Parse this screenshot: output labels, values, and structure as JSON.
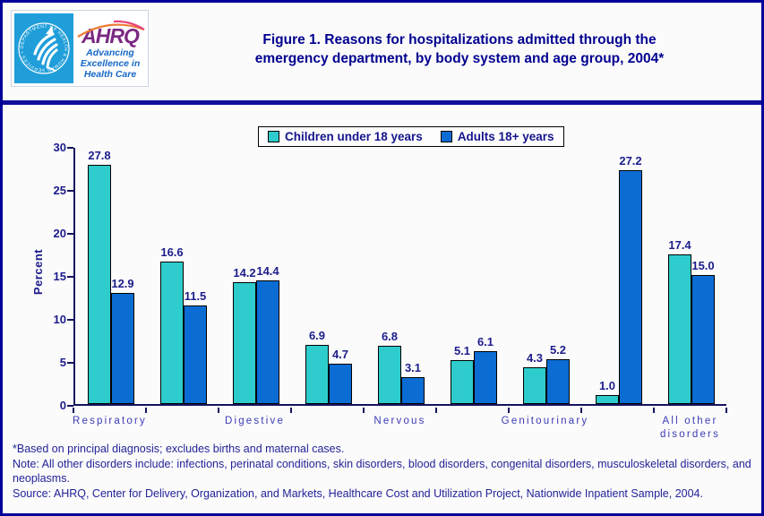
{
  "page": {
    "border_color": "#000099",
    "background": "#fbfbfb"
  },
  "header": {
    "logo": {
      "seal_text": "DEPARTMENT OF HEALTH & HUMAN SERVICES • USA",
      "acronym": "AHRQ",
      "tagline_lines": [
        "Advancing",
        "Excellence in",
        "Health Care"
      ],
      "seal_bg": "#1f9ed9",
      "acronym_color": "#7b2982",
      "tagline_color": "#1668c8",
      "arc_color": "#ee7a36"
    },
    "title_line1": "Figure 1. Reasons for hospitalizations admitted through the",
    "title_line2": "emergency department, by body system and age group, 2004*",
    "title_color": "#000090"
  },
  "chart_data": {
    "type": "bar",
    "title": "Figure 1. Reasons for hospitalizations admitted through the emergency department, by body system and age group, 2004*",
    "xlabel": "",
    "ylabel": "Percent",
    "ylim": [
      0,
      30
    ],
    "yticks": [
      0,
      5,
      10,
      15,
      20,
      25,
      30
    ],
    "grid": false,
    "legend_position": "top-center",
    "data_labels": true,
    "categories": [
      "Respiratory",
      "",
      "Digestive",
      "",
      "Nervous",
      "",
      "Genitourinary",
      "",
      "All other\ndisorders"
    ],
    "series": [
      {
        "name": "Children under 18 years",
        "color": "#2ecccc",
        "values": [
          27.8,
          16.6,
          14.2,
          6.9,
          6.8,
          5.1,
          4.3,
          1.0,
          17.4
        ]
      },
      {
        "name": "Adults 18+ years",
        "color": "#0b6cd3",
        "values": [
          12.9,
          11.5,
          14.4,
          4.7,
          3.1,
          6.1,
          5.2,
          27.2,
          15.0
        ]
      }
    ]
  },
  "footnotes": {
    "asterisk": "*Based on principal diagnosis; excludes births and maternal cases.",
    "note": "Note: All other disorders include: infections, perinatal conditions, skin disorders, blood disorders, congenital disorders,  musculoskeletal disorders, and neoplasms.",
    "source": "Source: AHRQ, Center for Delivery, Organization, and Markets, Healthcare Cost and Utilization Project, Nationwide Inpatient Sample, 2004."
  }
}
